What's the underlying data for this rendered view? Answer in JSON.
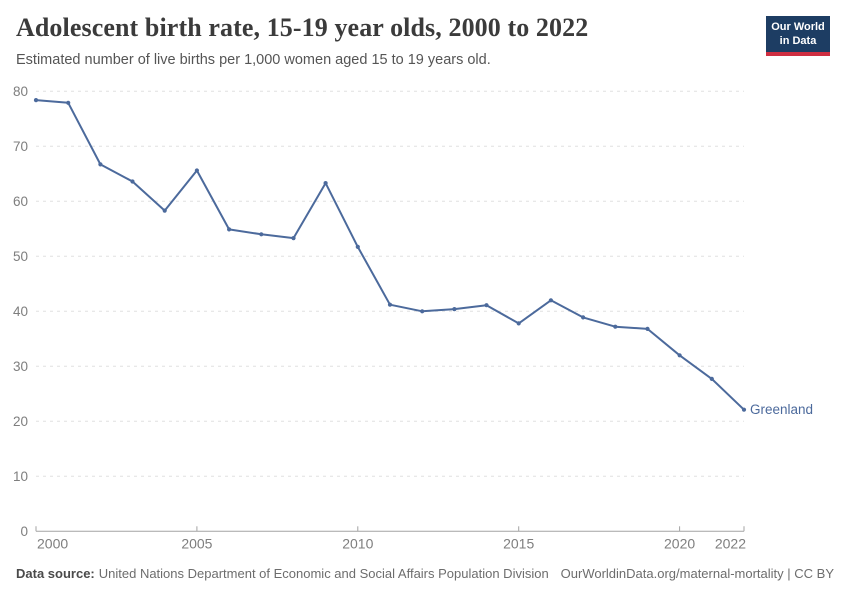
{
  "header": {
    "title": "Adolescent birth rate, 15-19 year olds, 2000 to 2022",
    "subtitle": "Estimated number of live births per 1,000 women aged 15 to 19 years old."
  },
  "logo": {
    "line1": "Our World",
    "line2": "in Data"
  },
  "colors": {
    "line": "#4c6a9c",
    "logo_bg": "#1d3d63",
    "logo_bar": "#cf2e41",
    "gridline": "#e0e0e0",
    "axis": "#a3a3a3",
    "tick_label": "#7e7e7e"
  },
  "chart_data": {
    "type": "line",
    "title": "Adolescent birth rate, 15-19 year olds, 2000 to 2022",
    "xlabel": "",
    "ylabel": "Estimated number of live births per 1,000 women aged 15 to 19 years old",
    "xlim": [
      2000,
      2022
    ],
    "ylim": [
      0,
      80
    ],
    "xticks": [
      2000,
      2005,
      2010,
      2015,
      2020,
      2022
    ],
    "yticks": [
      0,
      10,
      20,
      30,
      40,
      50,
      60,
      70,
      80
    ],
    "grid": "horizontal-dashed",
    "legend_position": "end-of-line-label",
    "x": [
      2000,
      2001,
      2002,
      2003,
      2004,
      2005,
      2006,
      2007,
      2008,
      2009,
      2010,
      2011,
      2012,
      2013,
      2014,
      2015,
      2016,
      2017,
      2018,
      2019,
      2020,
      2021,
      2022
    ],
    "series": [
      {
        "name": "Greenland",
        "color": "#4c6a9c",
        "values": [
          78.4,
          77.9,
          66.7,
          63.6,
          58.3,
          65.6,
          54.9,
          54.0,
          53.3,
          63.3,
          51.7,
          41.2,
          40.0,
          40.4,
          41.1,
          37.8,
          42.0,
          38.9,
          37.2,
          36.8,
          32.0,
          27.7,
          22.1
        ]
      }
    ]
  },
  "footer": {
    "datasource_label": "Data source:",
    "datasource": "United Nations Department of Economic and Social Affairs Population Division",
    "attribution": "OurWorldinData.org/maternal-mortality | CC BY"
  }
}
